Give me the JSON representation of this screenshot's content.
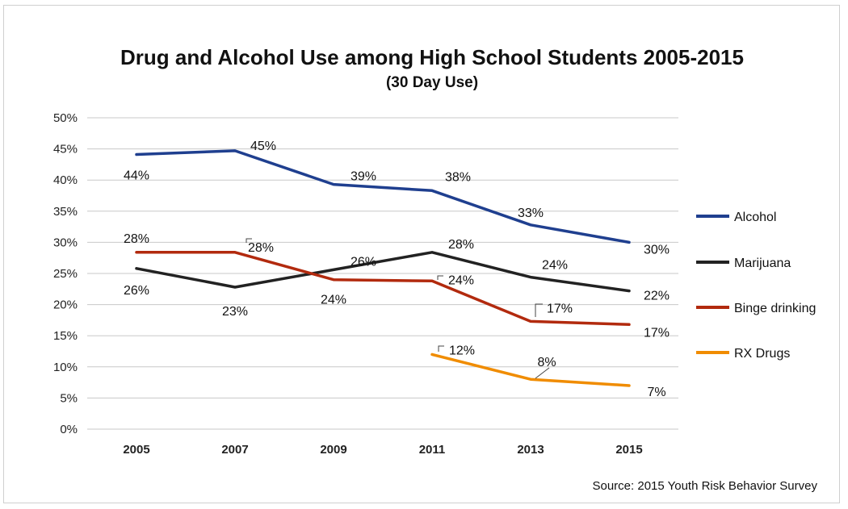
{
  "chart_data": {
    "type": "line",
    "title": "Drug and Alcohol Use among High School Students 2005-2015",
    "subtitle": "(30 Day Use)",
    "source": "Source: 2015 Youth Risk Behavior Survey",
    "x": [
      "2005",
      "2007",
      "2009",
      "2011",
      "2013",
      "2015"
    ],
    "y_ticks": [
      "0%",
      "5%",
      "10%",
      "15%",
      "20%",
      "25%",
      "30%",
      "35%",
      "40%",
      "45%",
      "50%"
    ],
    "ylim": [
      0,
      50
    ],
    "grid": true,
    "legend_position": "right",
    "series": [
      {
        "name": "Alcohol",
        "color": "#1f3f8f",
        "values": [
          44.1,
          44.7,
          39.3,
          38.3,
          32.8,
          30.0
        ],
        "labels": [
          "44%",
          "45%",
          "39%",
          "38%",
          "33%",
          "30%"
        ]
      },
      {
        "name": "Marijuana",
        "color": "#222222",
        "values": [
          25.8,
          22.8,
          25.6,
          28.4,
          24.4,
          22.2
        ],
        "labels": [
          "26%",
          "23%",
          "26%",
          "28%",
          "24%",
          "22%"
        ]
      },
      {
        "name": "Binge drinking",
        "color": "#b22a0e",
        "values": [
          28.4,
          28.4,
          24.0,
          23.8,
          17.3,
          16.8
        ],
        "labels": [
          "28%",
          "28%",
          "24%",
          "24%",
          "17%",
          "17%"
        ]
      },
      {
        "name": "RX Drugs",
        "color": "#f08c00",
        "values": [
          null,
          null,
          null,
          12.0,
          8.0,
          7.0
        ],
        "labels": [
          null,
          null,
          null,
          "12%",
          "8%",
          "7%"
        ]
      }
    ]
  }
}
